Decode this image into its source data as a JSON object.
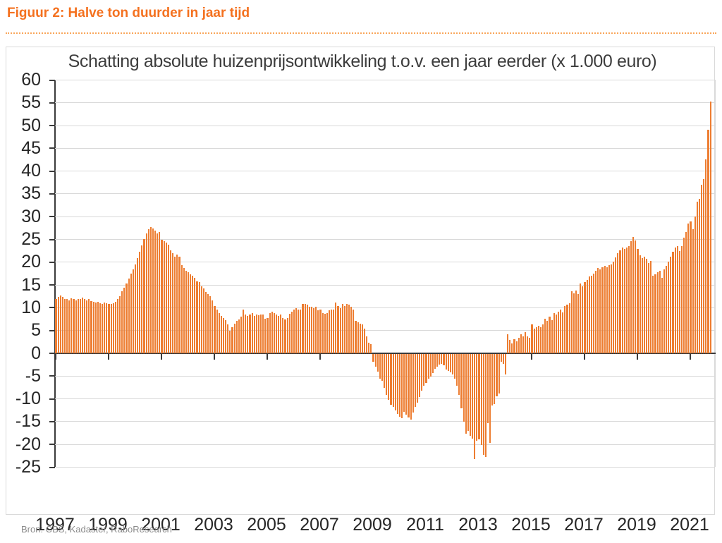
{
  "page": {
    "figure_label": "Figuur 2: Halve ton duurder in jaar tijd",
    "source": "Bron: CBS, Kadaster, RaboResearch"
  },
  "colors": {
    "header_orange": "#f4711f",
    "bar_orange": "#ed7d31",
    "grid_gray": "#d9d9d9",
    "axis_dark": "#3a3a3a",
    "source_gray": "#8a8a8a"
  },
  "chart_data": {
    "type": "bar",
    "title": "Schatting absolute huizenprijsontwikkeling t.o.v. een jaar eerder (x 1.000 euro)",
    "xlabel": "",
    "ylabel": "",
    "ylim": [
      -25,
      60
    ],
    "y_tick_step": 5,
    "y_tick_labels": [
      "60",
      "55",
      "50",
      "45",
      "40",
      "35",
      "30",
      "25",
      "20",
      "15",
      "10",
      "5",
      "0",
      "-5",
      "-10",
      "-15",
      "-20",
      "-25"
    ],
    "x_tick_labels": [
      "1997",
      "1999",
      "2001",
      "2003",
      "2005",
      "2007",
      "2009",
      "2011",
      "2013",
      "2015",
      "2017",
      "2019",
      "2021"
    ],
    "x_start": "1997-01",
    "x_frequency": "monthly",
    "grid": true,
    "legend_position": "none",
    "series": [
      {
        "name": "Absolute huizenprijsontwikkeling t.o.v. een jaar eerder (x 1.000 euro)",
        "values": [
          11.8,
          12.3,
          12.6,
          12.3,
          11.9,
          11.8,
          11.6,
          12.0,
          11.8,
          11.6,
          11.9,
          11.8,
          12.1,
          11.9,
          11.6,
          11.8,
          11.4,
          11.2,
          11.1,
          11.2,
          10.9,
          10.8,
          11.1,
          10.9,
          10.8,
          10.7,
          10.9,
          11.2,
          11.8,
          12.5,
          13.5,
          14.3,
          15.3,
          16.3,
          17.4,
          18.4,
          19.4,
          20.8,
          22.2,
          23.6,
          25.0,
          26.3,
          27.2,
          27.7,
          27.3,
          26.9,
          26.2,
          26.5,
          24.8,
          24.5,
          24.2,
          23.7,
          22.5,
          21.9,
          21.1,
          21.6,
          21.2,
          19.3,
          18.6,
          18.0,
          17.8,
          17.3,
          17.0,
          16.5,
          15.7,
          15.5,
          14.7,
          14.2,
          13.4,
          12.9,
          12.4,
          11.6,
          10.3,
          9.5,
          8.8,
          8.2,
          7.7,
          7.2,
          6.2,
          4.9,
          5.7,
          6.4,
          7.0,
          7.4,
          8.0,
          9.5,
          8.5,
          8.2,
          8.5,
          8.8,
          8.2,
          8.5,
          8.3,
          8.5,
          8.5,
          7.5,
          7.7,
          8.8,
          9.0,
          8.8,
          8.4,
          8.2,
          8.5,
          7.6,
          7.4,
          7.7,
          8.6,
          9.0,
          9.5,
          9.8,
          9.5,
          9.5,
          10.7,
          10.8,
          10.6,
          10.1,
          10.1,
          9.9,
          10.1,
          9.3,
          9.5,
          8.8,
          8.6,
          8.8,
          9.3,
          9.5,
          9.5,
          11.0,
          10.3,
          9.8,
          10.8,
          10.3,
          10.8,
          10.6,
          10.1,
          9.5,
          7.0,
          6.7,
          6.5,
          6.2,
          5.4,
          3.6,
          2.3,
          1.9,
          -1.8,
          -2.8,
          -4.0,
          -5.5,
          -6.0,
          -7.5,
          -9.1,
          -10.2,
          -11.2,
          -11.7,
          -12.4,
          -13.2,
          -13.8,
          -14.2,
          -12.7,
          -13.4,
          -14.0,
          -14.5,
          -13.0,
          -11.7,
          -10.7,
          -9.5,
          -8.1,
          -7.0,
          -6.5,
          -5.5,
          -5.0,
          -4.2,
          -3.4,
          -2.9,
          -2.4,
          -2.2,
          -2.6,
          -3.5,
          -3.8,
          -4.1,
          -4.5,
          -5.5,
          -7.0,
          -9.0,
          -12.0,
          -15.0,
          -17.5,
          -17.0,
          -18.0,
          -18.6,
          -23.2,
          -19.1,
          -18.8,
          -20.1,
          -22.2,
          -22.7,
          -15.2,
          -19.6,
          -11.3,
          -11.1,
          -9.3,
          -8.8,
          -1.8,
          -2.3,
          -4.6,
          4.1,
          2.8,
          2.1,
          3.1,
          2.6,
          3.4,
          4.1,
          3.6,
          4.6,
          3.7,
          3.4,
          6.2,
          5.4,
          5.7,
          6.0,
          5.7,
          6.2,
          7.5,
          7.0,
          8.0,
          7.2,
          8.8,
          8.5,
          9.0,
          9.5,
          8.9,
          10.3,
          10.6,
          10.9,
          13.5,
          13.1,
          13.7,
          12.9,
          15.2,
          14.7,
          15.5,
          16.1,
          16.8,
          17.0,
          17.5,
          18.0,
          18.6,
          18.4,
          18.8,
          19.1,
          18.8,
          19.3,
          19.5,
          20.1,
          21.0,
          21.9,
          22.5,
          23.2,
          22.9,
          23.2,
          23.5,
          24.5,
          25.4,
          24.7,
          22.9,
          21.4,
          20.9,
          21.2,
          20.6,
          19.8,
          20.2,
          17.0,
          17.3,
          17.8,
          18.0,
          16.5,
          18.3,
          19.2,
          20.0,
          21.1,
          22.2,
          23.2,
          23.5,
          22.4,
          23.5,
          25.3,
          26.5,
          28.4,
          28.9,
          27.1,
          29.9,
          33.2,
          33.8,
          36.9,
          38.1,
          42.5,
          49.0,
          55.2
        ]
      }
    ]
  }
}
